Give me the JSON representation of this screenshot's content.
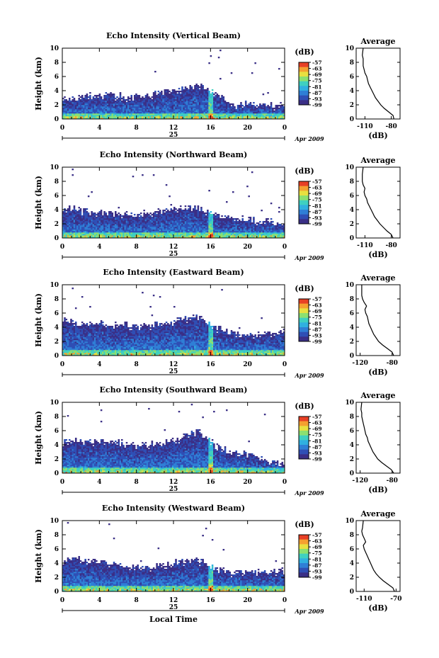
{
  "footer": {
    "xlabel": "Local Time"
  },
  "chart_data": [
    {
      "type": "heatmap",
      "title": "Echo Intensity (Vertical Beam)",
      "ylabel": "Height (km)",
      "y_ticks": [
        "0",
        "2",
        "4",
        "6",
        "8",
        "10"
      ],
      "x_ticks": [
        "0",
        "4",
        "8",
        "12",
        "16",
        "20",
        "0"
      ],
      "day": "25",
      "month": "Apr 2009",
      "colorbar_unit": "(dB)",
      "colorbar_ticks": [
        "-57",
        "-63",
        "-69",
        "-75",
        "-81",
        "-87",
        "-93",
        "-99"
      ],
      "xlim": [
        0,
        24
      ],
      "ylim": [
        0,
        10
      ],
      "top_km": [
        3.2,
        3.1,
        3.4,
        3.3,
        3.1,
        3.3,
        3.8,
        4.4,
        4.8,
        3.6,
        2.0,
        2.2,
        2.0,
        1.8
      ],
      "avg_title": "Average",
      "avg_xlabel": "(dB)",
      "avg_x_ticks": [
        "-110",
        "-80"
      ],
      "avg_xlim": [
        -120,
        -70
      ],
      "avg_y_ticks": [
        "0",
        "2",
        "4",
        "6",
        "8",
        "10"
      ],
      "avg_profile": [
        [
          -77,
          0
        ],
        [
          -78,
          0.5
        ],
        [
          -83,
          1
        ],
        [
          -88,
          1.5
        ],
        [
          -92,
          2
        ],
        [
          -95,
          2.5
        ],
        [
          -98,
          3
        ],
        [
          -100,
          3.5
        ],
        [
          -102,
          4
        ],
        [
          -104,
          4.5
        ],
        [
          -106,
          5
        ],
        [
          -107,
          5.5
        ],
        [
          -108,
          6
        ],
        [
          -110,
          6.5
        ],
        [
          -111,
          7
        ],
        [
          -112,
          7.5
        ],
        [
          -112,
          8
        ],
        [
          -112,
          8.5
        ],
        [
          -113,
          9
        ],
        [
          -112,
          10
        ]
      ]
    },
    {
      "type": "heatmap",
      "title": "Echo Intensity (Northward Beam)",
      "ylabel": "Height (km)",
      "y_ticks": [
        "0",
        "2",
        "4",
        "6",
        "8",
        "10"
      ],
      "x_ticks": [
        "0",
        "4",
        "8",
        "12",
        "16",
        "20",
        "0"
      ],
      "day": "25",
      "month": "Apr 2009",
      "colorbar_unit": "(dB)",
      "colorbar_ticks": [
        "-57",
        "-63",
        "-69",
        "-75",
        "-81",
        "-87",
        "-93",
        "-99"
      ],
      "xlim": [
        0,
        24
      ],
      "ylim": [
        0,
        10
      ],
      "top_km": [
        4.2,
        4.0,
        3.5,
        3.4,
        3.3,
        3.5,
        3.8,
        4.3,
        4.2,
        3.1,
        2.8,
        2.6,
        2.4,
        2.0
      ],
      "avg_title": "Average",
      "avg_xlabel": "(dB)",
      "avg_x_ticks": [
        "-110",
        "-80"
      ],
      "avg_xlim": [
        -120,
        -70
      ],
      "avg_y_ticks": [
        "0",
        "2",
        "4",
        "6",
        "8",
        "10"
      ],
      "avg_profile": [
        [
          -78,
          0
        ],
        [
          -80,
          0.5
        ],
        [
          -85,
          1
        ],
        [
          -89,
          1.5
        ],
        [
          -93,
          2
        ],
        [
          -96,
          2.5
        ],
        [
          -99,
          3
        ],
        [
          -101,
          3.5
        ],
        [
          -103,
          4
        ],
        [
          -105,
          4.5
        ],
        [
          -107,
          5
        ],
        [
          -108,
          5.5
        ],
        [
          -110,
          6
        ],
        [
          -111,
          6.5
        ],
        [
          -110,
          7
        ],
        [
          -112,
          7.5
        ],
        [
          -113,
          8
        ],
        [
          -113,
          8.5
        ],
        [
          -113,
          9
        ],
        [
          -112,
          10
        ]
      ]
    },
    {
      "type": "heatmap",
      "title": "Echo Intensity (Eastward Beam)",
      "ylabel": "Height (km)",
      "y_ticks": [
        "0",
        "2",
        "4",
        "6",
        "8",
        "10"
      ],
      "x_ticks": [
        "0",
        "4",
        "8",
        "12",
        "16",
        "20",
        "0"
      ],
      "day": "25",
      "month": "Apr 2009",
      "colorbar_unit": "(dB)",
      "colorbar_ticks": [
        "-57",
        "-63",
        "-69",
        "-75",
        "-81",
        "-87",
        "-93",
        "-99"
      ],
      "xlim": [
        0,
        24
      ],
      "ylim": [
        0,
        10
      ],
      "top_km": [
        5.0,
        4.8,
        4.5,
        4.2,
        4.3,
        4.2,
        4.6,
        5.0,
        5.5,
        4.0,
        3.2,
        3.0,
        3.2,
        3.4
      ],
      "avg_title": "Average",
      "avg_xlabel": "(dB)",
      "avg_x_ticks": [
        "-120",
        "-80"
      ],
      "avg_xlim": [
        -125,
        -70
      ],
      "avg_y_ticks": [
        "0",
        "2",
        "4",
        "6",
        "8",
        "10"
      ],
      "avg_profile": [
        [
          -78,
          0
        ],
        [
          -80,
          0.5
        ],
        [
          -86,
          1
        ],
        [
          -92,
          1.5
        ],
        [
          -97,
          2
        ],
        [
          -100,
          2.5
        ],
        [
          -103,
          3
        ],
        [
          -105,
          3.5
        ],
        [
          -107,
          4
        ],
        [
          -109,
          4.5
        ],
        [
          -110,
          5
        ],
        [
          -111,
          5.5
        ],
        [
          -113,
          6
        ],
        [
          -114,
          6.5
        ],
        [
          -112,
          7
        ],
        [
          -115,
          7.5
        ],
        [
          -117,
          8
        ],
        [
          -118,
          8.5
        ],
        [
          -118,
          9
        ],
        [
          -118,
          10
        ]
      ]
    },
    {
      "type": "heatmap",
      "title": "Echo Intensity (Southward Beam)",
      "ylabel": "Height (km)",
      "y_ticks": [
        "0",
        "2",
        "4",
        "6",
        "8",
        "10"
      ],
      "x_ticks": [
        "0",
        "4",
        "8",
        "12",
        "16",
        "20",
        "0"
      ],
      "day": "25",
      "month": "Apr 2009",
      "colorbar_unit": "(dB)",
      "colorbar_ticks": [
        "-57",
        "-63",
        "-69",
        "-75",
        "-81",
        "-87",
        "-93",
        "-99"
      ],
      "xlim": [
        0,
        24
      ],
      "ylim": [
        0,
        10
      ],
      "top_km": [
        4.5,
        4.6,
        4.4,
        4.5,
        4.0,
        4.0,
        4.5,
        5.0,
        6.0,
        3.8,
        3.2,
        2.8,
        1.8,
        1.2
      ],
      "avg_title": "Average",
      "avg_xlabel": "(dB)",
      "avg_x_ticks": [
        "-120",
        "-80"
      ],
      "avg_xlim": [
        -125,
        -70
      ],
      "avg_y_ticks": [
        "0",
        "2",
        "4",
        "6",
        "8",
        "10"
      ],
      "avg_profile": [
        [
          -78,
          0
        ],
        [
          -81,
          0.5
        ],
        [
          -87,
          1
        ],
        [
          -93,
          1.5
        ],
        [
          -98,
          2
        ],
        [
          -101,
          2.5
        ],
        [
          -104,
          3
        ],
        [
          -106,
          3.5
        ],
        [
          -108,
          4
        ],
        [
          -110,
          4.5
        ],
        [
          -111,
          5
        ],
        [
          -113,
          5.5
        ],
        [
          -114,
          6
        ],
        [
          -115,
          6.5
        ],
        [
          -116,
          7
        ],
        [
          -117,
          7.5
        ],
        [
          -118,
          8
        ],
        [
          -118,
          8.5
        ],
        [
          -119,
          9
        ],
        [
          -118,
          10
        ]
      ]
    },
    {
      "type": "heatmap",
      "title": "Echo Intensity (Westward Beam)",
      "ylabel": "Height (km)",
      "y_ticks": [
        "0",
        "2",
        "4",
        "6",
        "8",
        "10"
      ],
      "x_ticks": [
        "0",
        "4",
        "8",
        "12",
        "16",
        "20",
        "0"
      ],
      "day": "25",
      "month": "Apr 2009",
      "colorbar_unit": "(dB)",
      "colorbar_ticks": [
        "-57",
        "-63",
        "-69",
        "-75",
        "-81",
        "-87",
        "-93",
        "-99"
      ],
      "xlim": [
        0,
        24
      ],
      "ylim": [
        0,
        10
      ],
      "top_km": [
        4.3,
        4.6,
        4.2,
        3.8,
        3.4,
        3.4,
        3.7,
        4.2,
        4.4,
        3.2,
        2.6,
        2.8,
        2.8,
        3.0
      ],
      "avg_title": "Average",
      "avg_xlabel": "(dB)",
      "avg_x_ticks": [
        "-110",
        "-70"
      ],
      "avg_xlim": [
        -120,
        -65
      ],
      "avg_y_ticks": [
        "0",
        "2",
        "4",
        "6",
        "8",
        "10"
      ],
      "avg_profile": [
        [
          -72,
          0
        ],
        [
          -74,
          0.5
        ],
        [
          -80,
          1
        ],
        [
          -86,
          1.5
        ],
        [
          -91,
          2
        ],
        [
          -95,
          2.5
        ],
        [
          -98,
          3
        ],
        [
          -100,
          3.5
        ],
        [
          -102,
          4
        ],
        [
          -104,
          4.5
        ],
        [
          -106,
          5
        ],
        [
          -108,
          5.5
        ],
        [
          -110,
          6
        ],
        [
          -111,
          6.5
        ],
        [
          -108,
          7
        ],
        [
          -110,
          7.5
        ],
        [
          -112,
          8
        ],
        [
          -113,
          8.5
        ],
        [
          -112,
          9
        ],
        [
          -111,
          10
        ]
      ]
    }
  ]
}
